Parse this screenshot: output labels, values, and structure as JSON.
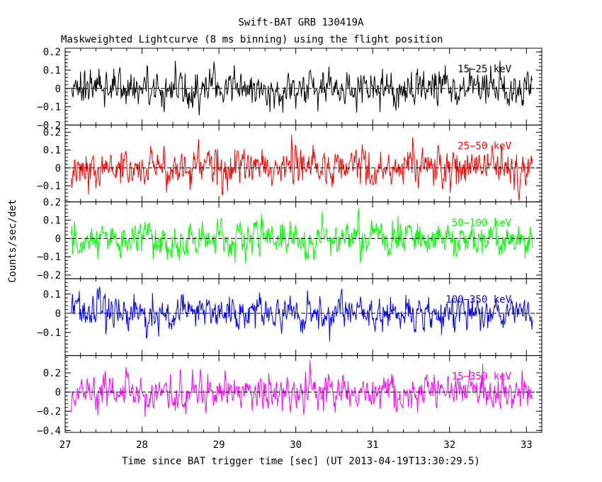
{
  "title": "Swift-BAT GRB 130419A",
  "subtitle": "Maskweighted Lightcurve (8 ms binning) using the flight position",
  "chart_data": {
    "type": "line",
    "xlabel": "Time since BAT trigger time [sec] (UT 2013-04-19T13:30:29.5)",
    "ylabel": "Counts/sec/det",
    "xlim": [
      27,
      33.2
    ],
    "xticks": [
      "27",
      "28",
      "29",
      "30",
      "31",
      "32",
      "33"
    ],
    "data_range": [
      27.08,
      33.08
    ],
    "bin_width_sec": 0.008,
    "zero_line": true,
    "panels": [
      {
        "name": "15-25 keV",
        "label": "15−25 keV",
        "color": "#000000",
        "ylim": [
          -0.2,
          0.22
        ],
        "yticks": [
          0.2,
          0.1,
          0,
          -0.1,
          -0.2
        ],
        "ytick_labels": [
          "0.2",
          "0.1",
          "0",
          "−0.1",
          "−0.2"
        ],
        "amplitude": 0.085
      },
      {
        "name": "25-50 keV",
        "label": "25−50 keV",
        "color": "#ff0000",
        "ylim": [
          -0.19,
          0.24
        ],
        "yticks": [
          0.2,
          0.1,
          0,
          -0.1
        ],
        "ytick_labels": [
          "0.2",
          "0.1",
          "0",
          "−0.1"
        ],
        "amplitude": 0.09
      },
      {
        "name": "50-100 keV",
        "label": "50−100 keV",
        "color": "#00ff00",
        "ylim": [
          -0.22,
          0.2
        ],
        "yticks": [
          0.2,
          0.1,
          0,
          -0.1,
          -0.2
        ],
        "ytick_labels": [
          "0.2",
          "0.1",
          "0",
          "−0.1",
          "−0.2"
        ],
        "amplitude": 0.08
      },
      {
        "name": "100-350 keV",
        "label": "100−350 keV",
        "color": "#0000ff",
        "ylim": [
          -0.22,
          0.18
        ],
        "yticks": [
          0.1,
          0,
          -0.1
        ],
        "ytick_labels": [
          "0.1",
          "0",
          "−0.1"
        ],
        "amplitude": 0.075
      },
      {
        "name": "15-350 keV",
        "label": "15−350 keV",
        "color": "#ff00ff",
        "ylim": [
          -0.42,
          0.38
        ],
        "yticks": [
          0.2,
          0,
          -0.2,
          -0.4
        ],
        "ytick_labels": [
          "0.2",
          "0",
          "−0.2",
          "−0.4"
        ],
        "amplitude": 0.15
      }
    ]
  }
}
